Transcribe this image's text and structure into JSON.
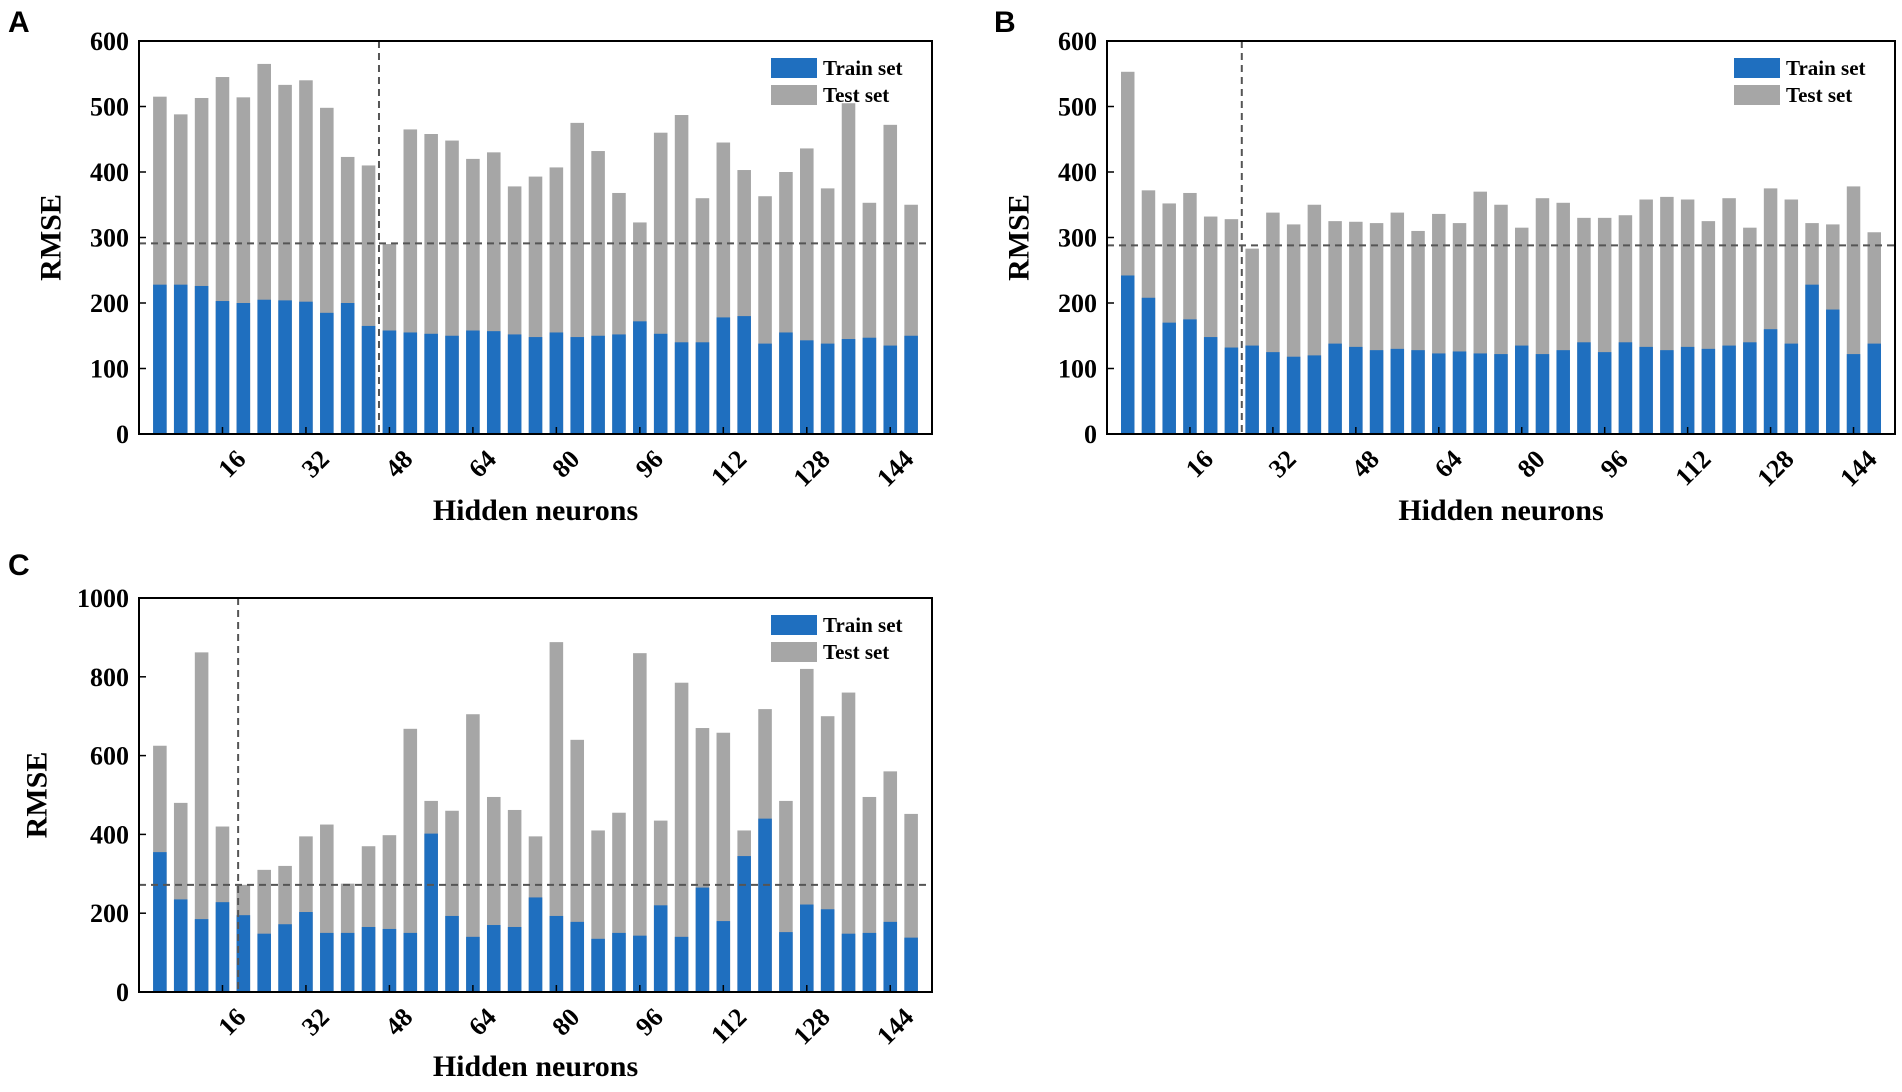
{
  "colors": {
    "train": "#1f6fbf",
    "test": "#a6a6a6",
    "reference_line": "#555555",
    "axis": "#000000"
  },
  "chart_data": [
    {
      "type": "bar",
      "panel_label": "A",
      "xlabel": "Hidden neurons",
      "ylabel": "RMSE",
      "ylim": [
        0,
        600
      ],
      "yticks": [
        0,
        100,
        200,
        300,
        400,
        500,
        600
      ],
      "xtick_labels": [
        "16",
        "32",
        "48",
        "64",
        "80",
        "96",
        "112",
        "128",
        "144"
      ],
      "x": [
        4,
        8,
        12,
        16,
        20,
        24,
        28,
        32,
        36,
        40,
        44,
        48,
        52,
        56,
        60,
        64,
        68,
        72,
        76,
        80,
        84,
        88,
        92,
        96,
        100,
        104,
        108,
        112,
        116,
        120,
        124,
        128,
        132,
        136,
        140,
        144,
        148
      ],
      "series": [
        {
          "name": "Train set",
          "values": [
            228,
            228,
            226,
            203,
            200,
            205,
            204,
            202,
            185,
            200,
            165,
            158,
            155,
            153,
            150,
            158,
            157,
            152,
            148,
            155,
            148,
            150,
            152,
            172,
            153,
            140,
            140,
            178,
            180,
            138,
            155,
            143,
            138,
            145,
            147,
            135,
            150
          ]
        },
        {
          "name": "Test set",
          "values": [
            515,
            488,
            513,
            545,
            514,
            565,
            533,
            540,
            498,
            423,
            410,
            290,
            465,
            458,
            448,
            420,
            430,
            378,
            393,
            407,
            475,
            432,
            368,
            323,
            460,
            487,
            360,
            445,
            403,
            363,
            400,
            436,
            375,
            505,
            353,
            472,
            350
          ]
        }
      ],
      "threshold": 291,
      "selected_x": 46,
      "legend_position": "top-right"
    },
    {
      "type": "bar",
      "panel_label": "B",
      "xlabel": "Hidden neurons",
      "ylabel": "RMSE",
      "ylim": [
        0,
        600
      ],
      "yticks": [
        0,
        100,
        200,
        300,
        400,
        500,
        600
      ],
      "xtick_labels": [
        "16",
        "32",
        "48",
        "64",
        "80",
        "96",
        "112",
        "128",
        "144"
      ],
      "x": [
        4,
        8,
        12,
        16,
        20,
        24,
        28,
        32,
        36,
        40,
        44,
        48,
        52,
        56,
        60,
        64,
        68,
        72,
        76,
        80,
        84,
        88,
        92,
        96,
        100,
        104,
        108,
        112,
        116,
        120,
        124,
        128,
        132,
        136,
        140,
        144,
        148
      ],
      "series": [
        {
          "name": "Train set",
          "values": [
            242,
            208,
            170,
            175,
            148,
            132,
            135,
            125,
            118,
            120,
            138,
            133,
            128,
            130,
            128,
            123,
            126,
            123,
            122,
            135,
            122,
            128,
            140,
            125,
            140,
            133,
            128,
            133,
            130,
            135,
            140,
            160,
            138,
            228,
            190,
            122,
            138
          ]
        },
        {
          "name": "Test set",
          "values": [
            553,
            372,
            352,
            368,
            332,
            328,
            283,
            338,
            320,
            350,
            325,
            324,
            322,
            338,
            310,
            336,
            322,
            370,
            350,
            315,
            360,
            353,
            330,
            330,
            334,
            358,
            362,
            358,
            325,
            360,
            315,
            375,
            358,
            322,
            320,
            378,
            308
          ]
        }
      ],
      "threshold": 288,
      "selected_x": 26,
      "legend_position": "top-right"
    },
    {
      "type": "bar",
      "panel_label": "C",
      "xlabel": "Hidden neurons",
      "ylabel": "RMSE",
      "ylim": [
        0,
        1000
      ],
      "yticks": [
        0,
        200,
        400,
        600,
        800,
        1000
      ],
      "xtick_labels": [
        "16",
        "32",
        "48",
        "64",
        "80",
        "96",
        "112",
        "128",
        "144"
      ],
      "x": [
        4,
        8,
        12,
        16,
        20,
        24,
        28,
        32,
        36,
        40,
        44,
        48,
        52,
        56,
        60,
        64,
        68,
        72,
        76,
        80,
        84,
        88,
        92,
        96,
        100,
        104,
        108,
        112,
        116,
        120,
        124,
        128,
        132,
        136,
        140,
        144,
        148
      ],
      "series": [
        {
          "name": "Train set",
          "values": [
            355,
            235,
            185,
            228,
            195,
            148,
            172,
            203,
            150,
            150,
            165,
            160,
            150,
            402,
            193,
            140,
            170,
            165,
            240,
            193,
            178,
            135,
            150,
            143,
            220,
            140,
            265,
            180,
            345,
            440,
            152,
            222,
            210,
            148,
            150,
            178,
            138
          ]
        },
        {
          "name": "Test set",
          "values": [
            625,
            480,
            862,
            420,
            272,
            310,
            320,
            395,
            425,
            275,
            370,
            398,
            668,
            485,
            460,
            705,
            495,
            462,
            395,
            888,
            640,
            410,
            455,
            860,
            435,
            785,
            670,
            658,
            410,
            718,
            485,
            820,
            700,
            760,
            495,
            560,
            452
          ]
        }
      ],
      "threshold": 272,
      "selected_x": 19,
      "legend_position": "top-right"
    }
  ]
}
